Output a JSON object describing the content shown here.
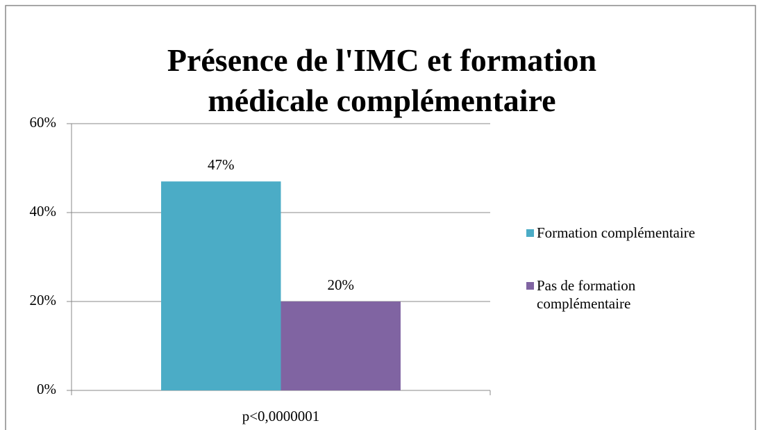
{
  "chart_data": {
    "type": "bar",
    "title": "Présence de l'IMC et formation médicale complémentaire",
    "categories": [
      "p<0,0000001"
    ],
    "series": [
      {
        "name": "Formation complémentaire",
        "color": "#4bacc6",
        "values": [
          47
        ],
        "value_labels": [
          "47%"
        ]
      },
      {
        "name": "Pas de formation complémentaire",
        "color": "#8064a2",
        "values": [
          20
        ],
        "value_labels": [
          "20%"
        ]
      }
    ],
    "ylim": [
      0,
      60
    ],
    "yticks": [
      {
        "value": 0,
        "label": "0%"
      },
      {
        "value": 20,
        "label": "20%"
      },
      {
        "value": 40,
        "label": "40%"
      },
      {
        "value": 60,
        "label": "60%"
      }
    ],
    "grid": true,
    "legend": "right"
  }
}
